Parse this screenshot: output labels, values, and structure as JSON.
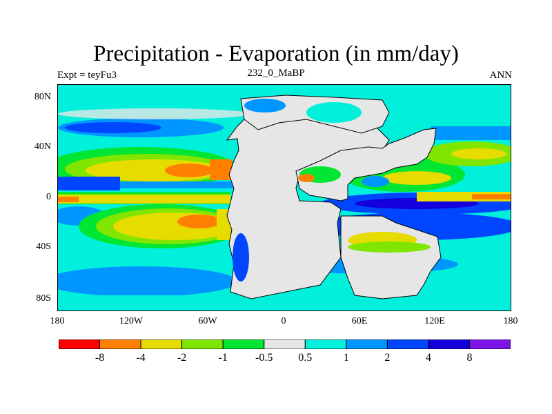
{
  "title": "Precipitation - Evaporation (in mm/day)",
  "subtitle_left": "Expt = teyFu3",
  "subtitle_center": "232_0_MaBP",
  "subtitle_right": "ANN",
  "y_ticks": [
    "80N",
    "40N",
    "0",
    "40S",
    "80S"
  ],
  "x_ticks": [
    "180",
    "120W",
    "60W",
    "0",
    "60E",
    "120E",
    "180"
  ],
  "colorbar": {
    "labels": [
      "-8",
      "-4",
      "-2",
      "-1",
      "-0.5",
      "0.5",
      "1",
      "2",
      "4",
      "8"
    ],
    "colors": [
      "#ff0000",
      "#ff8000",
      "#e6dc00",
      "#80e600",
      "#00e632",
      "#e6e6e6",
      "#00f0dc",
      "#0096ff",
      "#0046ff",
      "#1400dc",
      "#7d14e6"
    ]
  },
  "colors": {
    "land": "#e6e6e6",
    "cyan": "#00f0dc",
    "light_blue": "#0096ff",
    "mid_blue": "#0046ff",
    "deep_blue": "#1400dc",
    "green": "#00e632",
    "yellow_green": "#80e600",
    "yellow": "#e6dc00",
    "orange": "#ff8000"
  }
}
